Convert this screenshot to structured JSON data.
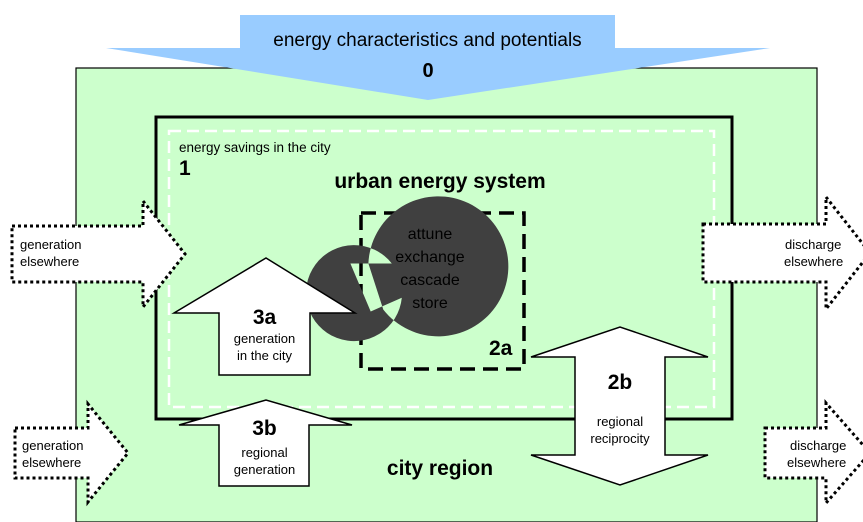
{
  "top_arrow": {
    "label": "energy characteristics and potentials",
    "number": "0"
  },
  "savings": {
    "label": "energy savings in the city",
    "number": "1"
  },
  "urban_system_title": "urban energy system",
  "core": {
    "lines": [
      "attune",
      "exchange",
      "cascade",
      "store"
    ],
    "number": "2a"
  },
  "arrow_2b": {
    "number": "2b",
    "lines": [
      "regional",
      "reciprocity"
    ]
  },
  "arrow_3a": {
    "number": "3a",
    "lines": [
      "generation",
      "in the city"
    ]
  },
  "arrow_3b": {
    "number": "3b",
    "lines": [
      "regional",
      "generation"
    ]
  },
  "city_region_title": "city region",
  "inflow_upper": {
    "lines": [
      "generation",
      "elsewhere"
    ]
  },
  "inflow_lower": {
    "lines": [
      "generation",
      "elsewhere"
    ]
  },
  "outflow_upper": {
    "lines": [
      "discharge",
      "elsewhere"
    ]
  },
  "outflow_lower": {
    "lines": [
      "discharge",
      "elsewhere"
    ]
  },
  "colors": {
    "region_fill": "#ccffcc",
    "top_arrow_fill": "#99ccff",
    "cycle_fill": "#404040"
  }
}
